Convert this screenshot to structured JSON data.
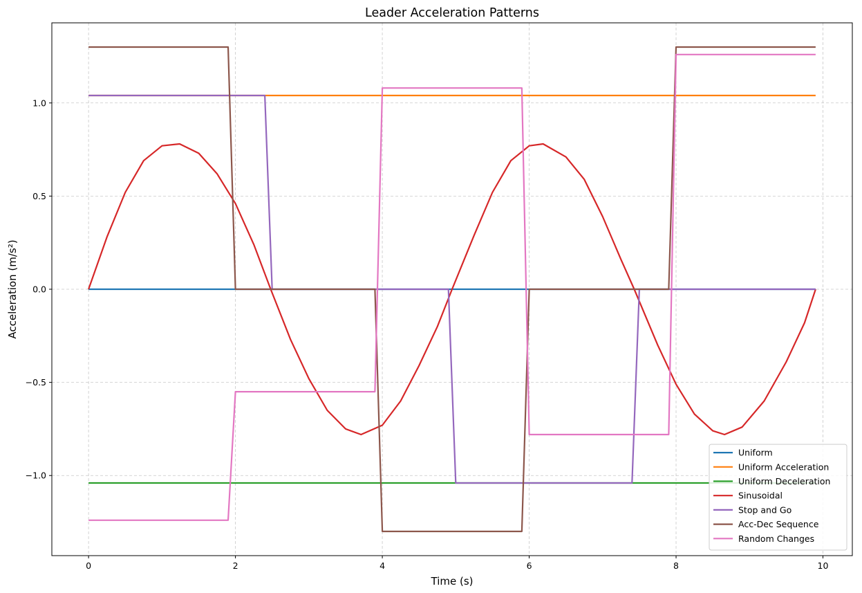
{
  "chart_data": {
    "type": "line",
    "title": "Leader Acceleration Patterns",
    "xlabel": "Time (s)",
    "ylabel": "Acceleration (m/s²)",
    "xlim": [
      -0.5,
      10.4
    ],
    "ylim": [
      -1.43,
      1.43
    ],
    "xticks": [
      0,
      2,
      4,
      6,
      8,
      10
    ],
    "xtick_labels": [
      "0",
      "2",
      "4",
      "6",
      "8",
      "10"
    ],
    "yticks": [
      -1.0,
      -0.5,
      0.0,
      0.5,
      1.0
    ],
    "ytick_labels": [
      "−1.0",
      "−0.5",
      "0.0",
      "0.5",
      "1.0"
    ],
    "grid": true,
    "legend_position": "lower-right",
    "series": [
      {
        "name": "Uniform",
        "color": "#1f77b4",
        "x": [
          0,
          9.9
        ],
        "y": [
          0,
          0
        ]
      },
      {
        "name": "Uniform Acceleration",
        "color": "#ff7f0e",
        "x": [
          0,
          9.9
        ],
        "y": [
          1.04,
          1.04
        ]
      },
      {
        "name": "Uniform Deceleration",
        "color": "#2ca02c",
        "x": [
          0,
          9.9
        ],
        "y": [
          -1.04,
          -1.04
        ]
      },
      {
        "name": "Sinusoidal",
        "color": "#d62728",
        "x": [
          0,
          0.25,
          0.5,
          0.75,
          1.0,
          1.24,
          1.5,
          1.75,
          2.0,
          2.25,
          2.48,
          2.75,
          3.0,
          3.25,
          3.5,
          3.71,
          4.0,
          4.25,
          4.5,
          4.75,
          4.95,
          5.25,
          5.5,
          5.75,
          6.0,
          6.19,
          6.5,
          6.75,
          7.0,
          7.25,
          7.43,
          7.75,
          8.0,
          8.25,
          8.5,
          8.66,
          8.9,
          9.2,
          9.5,
          9.75,
          9.9
        ],
        "y": [
          0,
          0.28,
          0.52,
          0.69,
          0.77,
          0.78,
          0.73,
          0.62,
          0.46,
          0.24,
          0.0,
          -0.27,
          -0.48,
          -0.65,
          -0.75,
          -0.78,
          -0.73,
          -0.6,
          -0.41,
          -0.2,
          0.0,
          0.29,
          0.52,
          0.69,
          0.77,
          0.78,
          0.71,
          0.59,
          0.39,
          0.16,
          0.0,
          -0.3,
          -0.51,
          -0.67,
          -0.76,
          -0.78,
          -0.74,
          -0.6,
          -0.39,
          -0.18,
          0.0
        ]
      },
      {
        "name": "Stop and Go",
        "color": "#9467bd",
        "x": [
          0,
          2.4,
          2.5,
          4.9,
          5.0,
          7.4,
          7.5,
          9.9
        ],
        "y": [
          1.04,
          1.04,
          0,
          0,
          -1.04,
          -1.04,
          0,
          0
        ]
      },
      {
        "name": "Acc-Dec Sequence",
        "color": "#8c564b",
        "x": [
          0,
          1.9,
          2.0,
          3.9,
          4.0,
          5.9,
          6.0,
          7.9,
          8.0,
          9.9
        ],
        "y": [
          1.3,
          1.3,
          0,
          0,
          -1.3,
          -1.3,
          0,
          0,
          1.3,
          1.3
        ]
      },
      {
        "name": "Random Changes",
        "color": "#e377c2",
        "x": [
          0,
          1.9,
          2.0,
          3.9,
          4.0,
          5.9,
          6.0,
          7.9,
          8.0,
          9.9
        ],
        "y": [
          -1.24,
          -1.24,
          -0.55,
          -0.55,
          1.08,
          1.08,
          -0.78,
          -0.78,
          1.26,
          1.26
        ]
      }
    ]
  }
}
